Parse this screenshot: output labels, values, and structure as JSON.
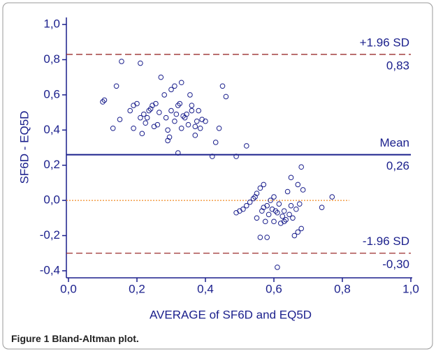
{
  "chart_data": {
    "type": "scatter",
    "x_label": "AVERAGE of SF6D and EQ5D",
    "y_label": "SF6D - EQ5D",
    "color": "#1a1f8c",
    "x": [
      0.1,
      0.105,
      0.13,
      0.14,
      0.15,
      0.155,
      0.18,
      0.19,
      0.19,
      0.2,
      0.21,
      0.21,
      0.215,
      0.22,
      0.225,
      0.23,
      0.235,
      0.24,
      0.245,
      0.25,
      0.255,
      0.26,
      0.265,
      0.27,
      0.28,
      0.285,
      0.29,
      0.29,
      0.295,
      0.3,
      0.3,
      0.31,
      0.31,
      0.315,
      0.32,
      0.32,
      0.325,
      0.33,
      0.33,
      0.335,
      0.34,
      0.345,
      0.35,
      0.355,
      0.36,
      0.36,
      0.37,
      0.37,
      0.375,
      0.38,
      0.385,
      0.39,
      0.4,
      0.42,
      0.43,
      0.44,
      0.45,
      0.46,
      0.49,
      0.52,
      0.49,
      0.5,
      0.51,
      0.52,
      0.53,
      0.54,
      0.545,
      0.55,
      0.56,
      0.57,
      0.55,
      0.56,
      0.565,
      0.57,
      0.575,
      0.58,
      0.585,
      0.59,
      0.595,
      0.6,
      0.6,
      0.605,
      0.58,
      0.61,
      0.61,
      0.615,
      0.62,
      0.625,
      0.63,
      0.635,
      0.64,
      0.645,
      0.65,
      0.65,
      0.655,
      0.66,
      0.665,
      0.67,
      0.67,
      0.675,
      0.68,
      0.68,
      0.685,
      0.74,
      0.77,
      0.63
    ],
    "values": [
      0.56,
      0.57,
      0.41,
      0.65,
      0.46,
      0.79,
      0.51,
      0.41,
      0.54,
      0.55,
      0.78,
      0.47,
      0.38,
      0.49,
      0.44,
      0.47,
      0.51,
      0.52,
      0.54,
      0.42,
      0.55,
      0.43,
      0.5,
      0.7,
      0.6,
      0.47,
      0.4,
      0.34,
      0.36,
      0.51,
      0.63,
      0.45,
      0.65,
      0.49,
      0.54,
      0.27,
      0.55,
      0.41,
      0.67,
      0.48,
      0.47,
      0.49,
      0.43,
      0.6,
      0.51,
      0.54,
      0.42,
      0.37,
      0.45,
      0.51,
      0.41,
      0.46,
      0.45,
      0.25,
      0.33,
      0.41,
      0.65,
      0.59,
      0.25,
      0.31,
      -0.07,
      -0.06,
      -0.05,
      -0.03,
      -0.01,
      0.01,
      0.02,
      0.04,
      0.07,
      0.09,
      -0.1,
      -0.21,
      -0.06,
      -0.04,
      -0.12,
      -0.03,
      -0.08,
      0.0,
      -0.05,
      0.02,
      -0.12,
      -0.06,
      -0.21,
      -0.38,
      -0.07,
      -0.02,
      -0.13,
      -0.09,
      -0.06,
      -0.11,
      0.05,
      -0.08,
      0.13,
      -0.03,
      -0.1,
      -0.2,
      -0.05,
      0.09,
      -0.18,
      -0.02,
      0.19,
      -0.16,
      0.06,
      -0.04,
      0.02,
      -0.12
    ],
    "xlim": [
      0,
      1
    ],
    "ylim": [
      -0.44,
      1.04
    ],
    "xticks": [
      {
        "value": 0,
        "label": "0,0"
      },
      {
        "value": 0.2,
        "label": "0,2"
      },
      {
        "value": 0.4,
        "label": "0,4"
      },
      {
        "value": 0.6,
        "label": "0,6"
      },
      {
        "value": 0.8,
        "label": "0,8"
      },
      {
        "value": 1,
        "label": "1,0"
      }
    ],
    "yticks": [
      {
        "value": -0.4,
        "label": "-0,4"
      },
      {
        "value": -0.2,
        "label": "-0,2"
      },
      {
        "value": 0,
        "label": "0,0"
      },
      {
        "value": 0.2,
        "label": "0,2"
      },
      {
        "value": 0.4,
        "label": "0,4"
      },
      {
        "value": 0.6,
        "label": "0,6"
      },
      {
        "value": 0.8,
        "label": "0,8"
      },
      {
        "value": 1,
        "label": "1,0"
      }
    ],
    "reference_lines": [
      {
        "value": 0.83,
        "label": "+1.96 SD",
        "value_label": "0,83",
        "color": "#9b2d2d",
        "style": "dashed"
      },
      {
        "value": 0.26,
        "label": "Mean",
        "value_label": "0,26",
        "color": "#1a1f8c",
        "style": "solid"
      },
      {
        "value": -0.3,
        "label": "-1.96 SD",
        "value_label": "-0,30",
        "color": "#9b2d2d",
        "style": "dashed"
      },
      {
        "value": 0,
        "color": "#f08a24",
        "style": "dotted"
      }
    ]
  },
  "caption": {
    "label": "Figure 1",
    "text": "Bland-Altman plot."
  }
}
